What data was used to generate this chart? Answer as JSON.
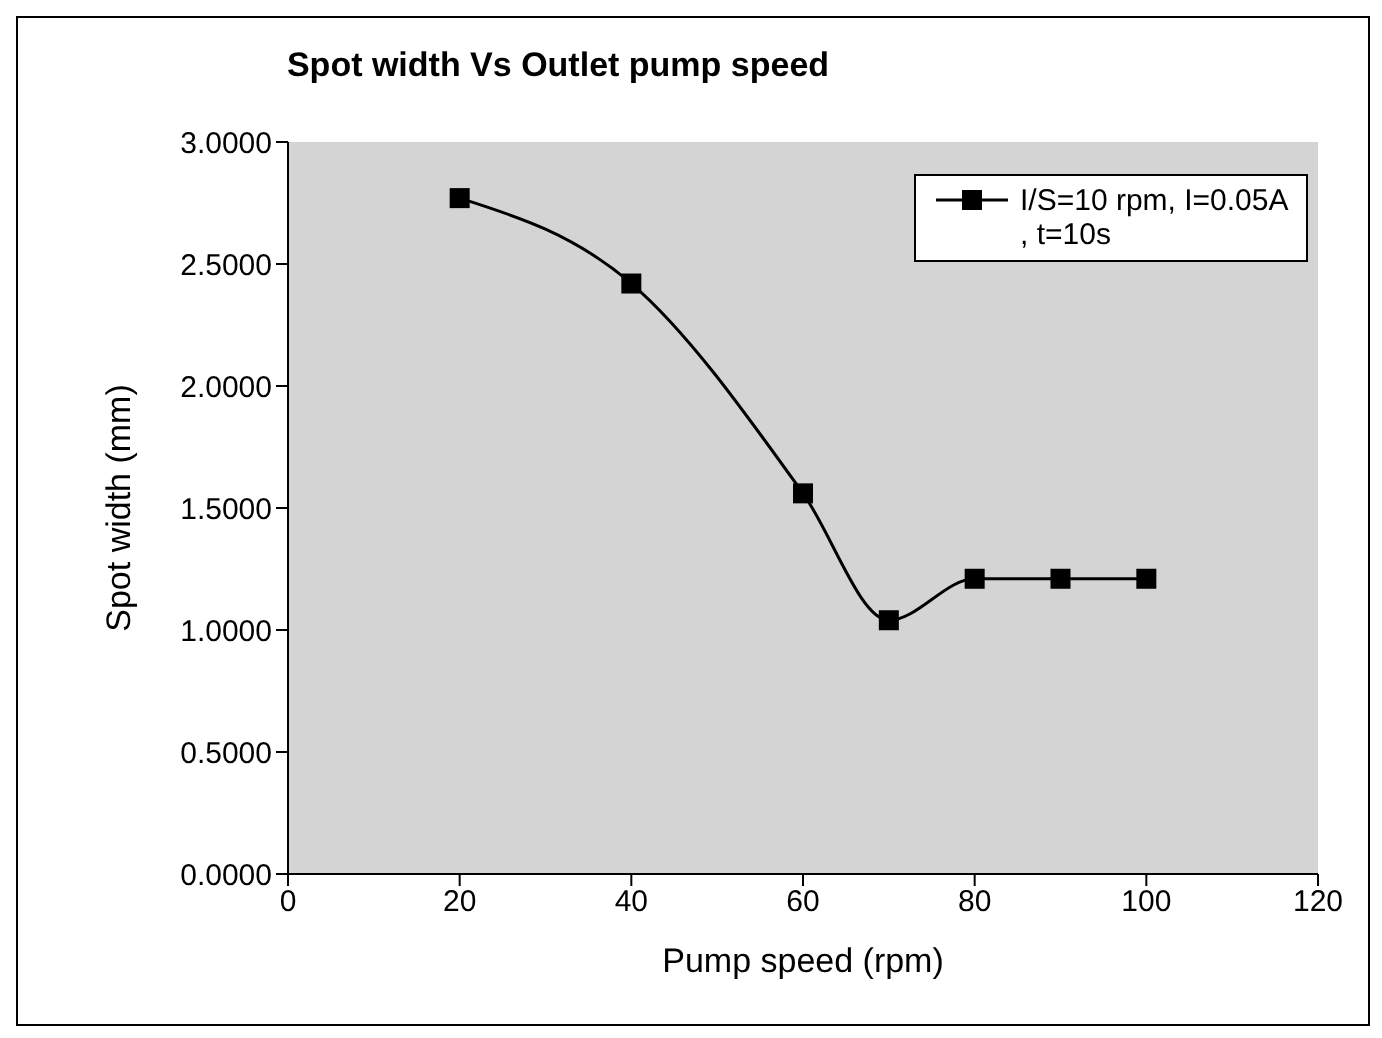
{
  "chart_data": {
    "type": "line",
    "title": "Spot width Vs Outlet pump speed",
    "xlabel": "Pump speed (rpm)",
    "ylabel": "Spot width (mm)",
    "x": [
      20,
      40,
      60,
      70,
      80,
      90,
      100
    ],
    "series": [
      {
        "name": "I/S=10 rpm, I=0.05A , t=10s",
        "color": "#000000",
        "values": [
          2.77,
          2.42,
          1.56,
          1.04,
          1.21,
          1.21,
          1.21
        ]
      }
    ],
    "xlim": [
      0,
      120
    ],
    "xticks": [
      0,
      20,
      40,
      60,
      80,
      100,
      120
    ],
    "ylim": [
      0,
      3
    ],
    "yticks": [
      {
        "value": 0,
        "label": "0.0000"
      },
      {
        "value": 0.5,
        "label": "0.5000"
      },
      {
        "value": 1,
        "label": "1.0000"
      },
      {
        "value": 1.5,
        "label": "1.5000"
      },
      {
        "value": 2,
        "label": "2.0000"
      },
      {
        "value": 2.5,
        "label": "2.5000"
      },
      {
        "value": 3,
        "label": "3.0000"
      }
    ],
    "grid": false,
    "legend": "top right",
    "marker": "square",
    "line_style": "solid"
  }
}
